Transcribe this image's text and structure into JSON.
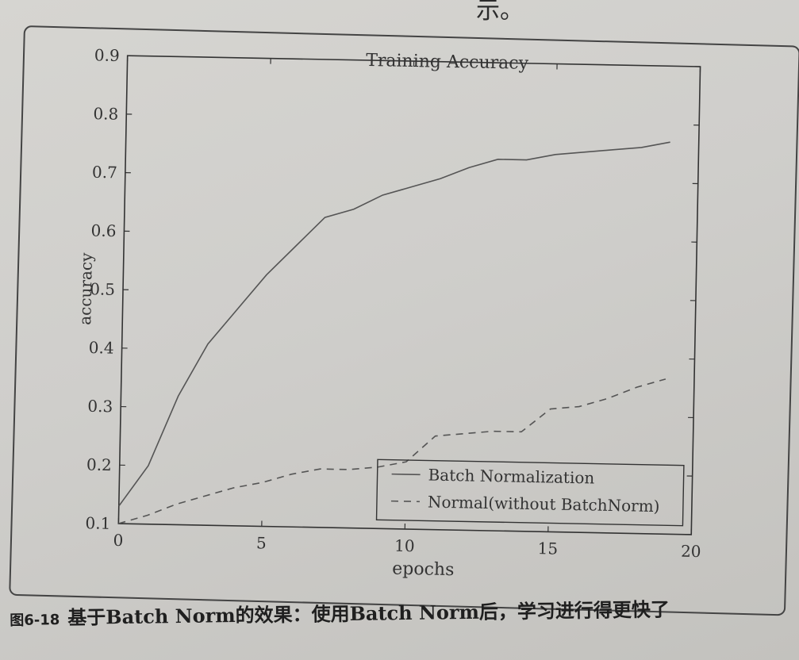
{
  "page": {
    "top_text": "示。",
    "caption_number": "图6-18",
    "caption_text": "基于Batch Norm的效果：使用Batch Norm后，学习进行得更快了"
  },
  "chart_data": {
    "type": "line",
    "title": "Training Accuracy",
    "xlabel": "epochs",
    "ylabel": "accuracy",
    "xlim": [
      0,
      20
    ],
    "ylim": [
      0.1,
      0.9
    ],
    "xticks": [
      "0",
      "5",
      "10",
      "15",
      "20"
    ],
    "yticks": [
      "0.1",
      "0.2",
      "0.3",
      "0.4",
      "0.5",
      "0.6",
      "0.7",
      "0.8",
      "0.9"
    ],
    "grid": false,
    "legend_position": "lower-right",
    "series": [
      {
        "name": "Batch Normalization",
        "style": "solid",
        "color": "#555555",
        "x": [
          0,
          1,
          2,
          3,
          4,
          5,
          6,
          7,
          8,
          9,
          10,
          11,
          12,
          13,
          14,
          15,
          16,
          17,
          18,
          19
        ],
        "y": [
          0.13,
          0.2,
          0.32,
          0.41,
          0.47,
          0.53,
          0.58,
          0.63,
          0.645,
          0.67,
          0.685,
          0.7,
          0.72,
          0.735,
          0.735,
          0.745,
          0.75,
          0.755,
          0.76,
          0.77
        ]
      },
      {
        "name": "Normal(without BatchNorm)",
        "style": "dashed",
        "color": "#555555",
        "x": [
          0,
          1,
          2,
          3,
          4,
          5,
          6,
          7,
          8,
          9,
          10,
          11,
          12,
          13,
          14,
          15,
          16,
          17,
          18,
          19
        ],
        "y": [
          0.1,
          0.115,
          0.135,
          0.15,
          0.165,
          0.175,
          0.19,
          0.2,
          0.2,
          0.205,
          0.215,
          0.26,
          0.265,
          0.27,
          0.27,
          0.31,
          0.315,
          0.33,
          0.35,
          0.365
        ]
      }
    ]
  }
}
